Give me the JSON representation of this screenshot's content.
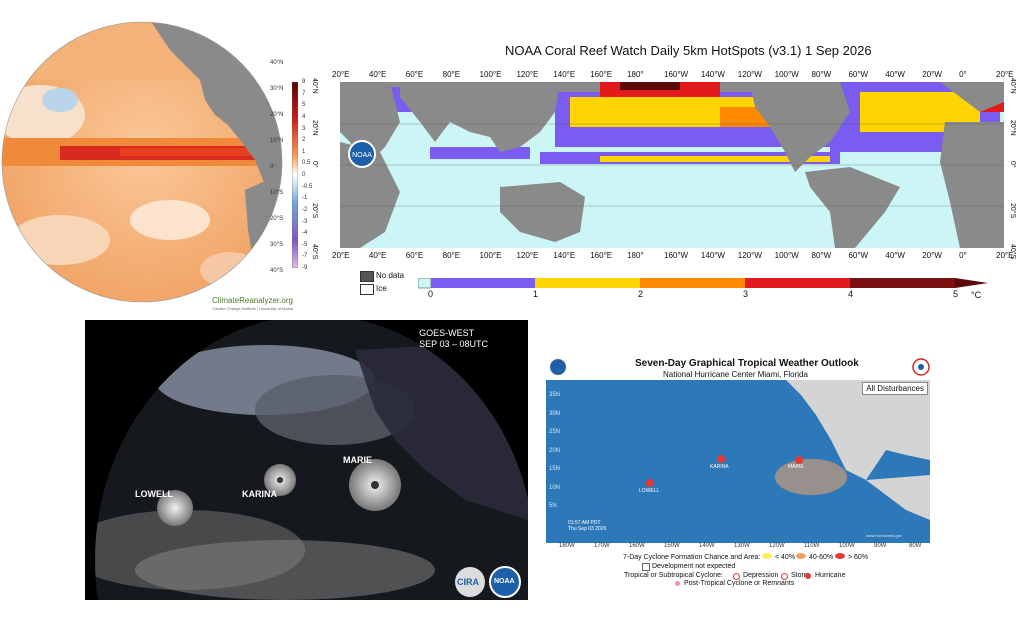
{
  "panel_globe": {
    "colorbar_ticks": [
      "9",
      "7",
      "5",
      "4",
      "3",
      "2",
      "1",
      "0.5",
      "0",
      "-0.5",
      "-1",
      "-2",
      "-3",
      "-4",
      "-5",
      "-7",
      "-9"
    ],
    "lat_labels": [
      "40°N",
      "30°N",
      "20°N",
      "10°N",
      "0°",
      "10°S",
      "20°S",
      "30°S",
      "40°S"
    ],
    "brand": "ClimateReanalyzer.org",
    "brand_sub": "Climate Change Institute | University of Maine"
  },
  "panel_hotspots": {
    "title": "NOAA Coral Reef Watch Daily 5km HotSpots  (v3.1)    1 Sep 2026",
    "lon_labels": [
      "20°E",
      "40°E",
      "60°E",
      "80°E",
      "100°E",
      "120°E",
      "140°E",
      "160°E",
      "180°",
      "160°W",
      "140°W",
      "120°W",
      "100°W",
      "80°W",
      "60°W",
      "40°W",
      "20°W",
      "0°",
      "20°E"
    ],
    "lat_labels": [
      "40°N",
      "20°N",
      "0°",
      "20°S",
      "40°S"
    ],
    "legend": {
      "no_data": "No data",
      "ice": "Ice"
    },
    "colorbar_labels": [
      "0",
      "1",
      "2",
      "3",
      "4",
      "5"
    ],
    "colorbar_unit": "°C",
    "colors": [
      "#ccf5f5",
      "#7b5cf0",
      "#ffd400",
      "#ff8a00",
      "#e31a1c",
      "#5a0a0a"
    ]
  },
  "panel_goes": {
    "title_line1": "GOES-WEST",
    "title_line2": "SEP 03 – 08UTC",
    "storms": [
      "LOWELL",
      "KARINA",
      "MARIE"
    ],
    "logos": [
      "CIRA",
      "NOAA"
    ]
  },
  "panel_nhc": {
    "title": "Seven-Day Graphical Tropical Weather Outlook",
    "subtitle": "National Hurricane Center  Miami, Florida",
    "button": "All Disturbances",
    "lat_labels": [
      "35N",
      "30N",
      "25N",
      "20N",
      "15N",
      "10N",
      "5N"
    ],
    "lon_labels": [
      "180W",
      "170W",
      "160W",
      "150W",
      "140W",
      "130W",
      "120W",
      "110W",
      "100W",
      "90W",
      "80W"
    ],
    "storms": [
      "LOWELL",
      "KARINA",
      "MARIE"
    ],
    "timestamp_line1": "01:57 AM PDT",
    "timestamp_line2": "Thu Sep 03 2026",
    "website": "www.hurricanes.gov",
    "legend": {
      "formation": "7-Day Cyclone Formation Chance and Area:",
      "low": "< 40%",
      "mid": "40-60%",
      "high": "> 60%",
      "not_expected": "Development not expected",
      "cyclone_label": "Tropical or Subtropical Cyclone:",
      "depression": "Depression",
      "storm": "Storm",
      "hurricane": "Hurricane",
      "post": "Post-Tropical Cyclone or Remnants"
    }
  }
}
